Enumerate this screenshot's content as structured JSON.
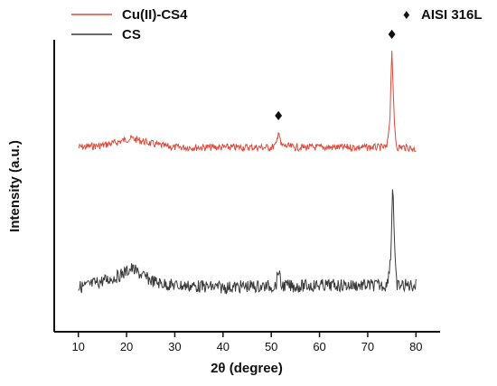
{
  "chart_data": {
    "type": "line",
    "xlabel": "2θ (degree)",
    "ylabel": "Intensity (a.u.)",
    "xlim": [
      5,
      85
    ],
    "xticks": [
      10,
      20,
      30,
      40,
      50,
      60,
      70,
      80
    ],
    "legend_position": "top-left",
    "grid": false,
    "series": [
      {
        "name": "Cu(II)-CS4",
        "color": "#e04a3a",
        "x": [
          10,
          15,
          18,
          20,
          21,
          22,
          25,
          28,
          30,
          35,
          40,
          45,
          50,
          51,
          51.5,
          52,
          55,
          60,
          65,
          70,
          74,
          74.6,
          75,
          75.5,
          76,
          78,
          80
        ],
        "y": [
          0.0,
          0.02,
          0.05,
          0.08,
          0.09,
          0.08,
          0.04,
          0.01,
          0.0,
          0.0,
          0.0,
          0.0,
          0.0,
          0.02,
          0.18,
          0.02,
          0.0,
          0.0,
          0.0,
          0.0,
          0.0,
          0.3,
          1.0,
          0.25,
          0.0,
          0.0,
          -0.02
        ]
      },
      {
        "name": "CS",
        "color": "#3a3a3a",
        "x": [
          10,
          12,
          15,
          18,
          20,
          21,
          22,
          24,
          26,
          28,
          30,
          35,
          40,
          45,
          50,
          51,
          51.5,
          52,
          55,
          60,
          65,
          70,
          74,
          74.8,
          75.2,
          75.6,
          76,
          78,
          80
        ],
        "y": [
          0.0,
          0.02,
          0.06,
          0.1,
          0.15,
          0.18,
          0.15,
          0.09,
          0.05,
          0.03,
          0.02,
          0.01,
          0.0,
          0.01,
          0.01,
          0.02,
          0.18,
          0.02,
          0.01,
          0.02,
          0.02,
          0.02,
          0.02,
          0.3,
          1.0,
          0.3,
          0.02,
          0.02,
          0.02
        ]
      }
    ],
    "annotations": [
      {
        "symbol": "♦",
        "x": 51.5,
        "series": "Cu(II)-CS4"
      },
      {
        "symbol": "♦",
        "x": 75.0,
        "series": "Cu(II)-CS4"
      }
    ],
    "marker_legend": {
      "symbol": "♦",
      "label": "AISI 316L"
    }
  }
}
